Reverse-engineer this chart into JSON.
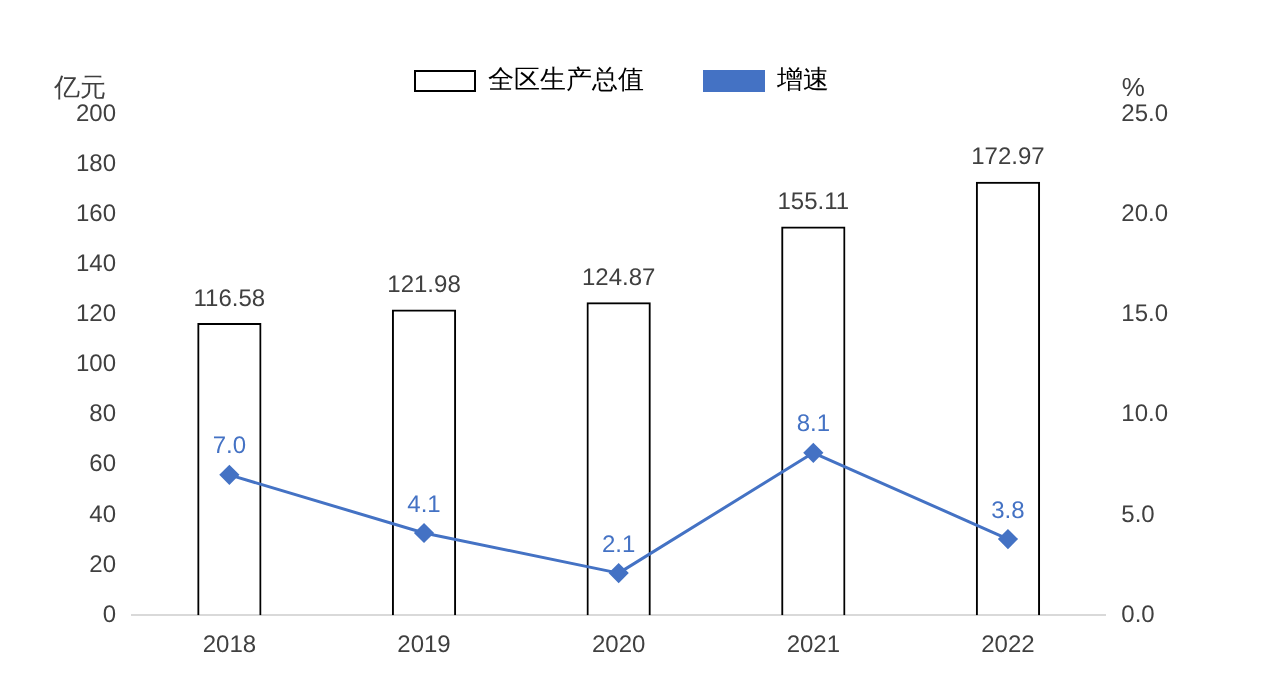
{
  "chart_data": {
    "type": "bar",
    "categories": [
      "2018",
      "2019",
      "2020",
      "2021",
      "2022"
    ],
    "series": [
      {
        "name": "全区生产总值",
        "color": "#000000",
        "values": [
          116.58,
          121.98,
          124.87,
          155.11,
          172.97
        ]
      },
      {
        "name": "增速",
        "type": "line",
        "axis": "y2",
        "color": "#4472c4",
        "values": [
          7.0,
          4.1,
          2.1,
          8.1,
          3.8
        ],
        "value_labels": [
          "7.0",
          "4.1",
          "2.1",
          "8.1",
          "3.8"
        ]
      }
    ],
    "ylabel": "亿元",
    "y2label": "%",
    "ylim": [
      0,
      200
    ],
    "yticks": [
      0,
      20,
      40,
      60,
      80,
      100,
      120,
      140,
      160,
      180,
      200
    ],
    "y2lim": [
      0,
      25
    ],
    "y2ticks": [
      {
        "value": 0,
        "label": "0.0"
      },
      {
        "value": 5,
        "label": "5.0"
      },
      {
        "value": 10,
        "label": "10.0"
      },
      {
        "value": 15,
        "label": "15.0"
      },
      {
        "value": 20,
        "label": "20.0"
      },
      {
        "value": 25,
        "label": "25.0"
      }
    ],
    "legend": "top",
    "grid": false,
    "marker": "diamond",
    "line_style": "solid",
    "data_labels": true
  }
}
